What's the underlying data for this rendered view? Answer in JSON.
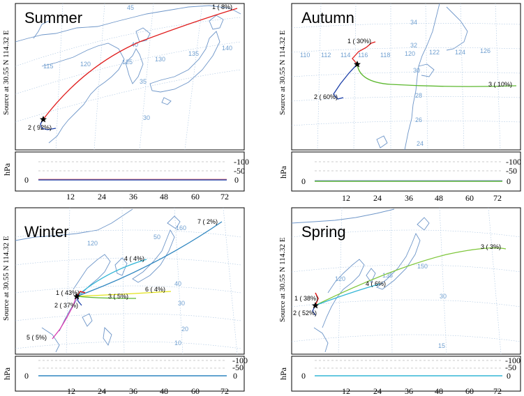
{
  "source_label": "Source  at 30.55 N 114.32 E",
  "height_unit": "hPa",
  "x_ticks": [
    "12",
    "24",
    "36",
    "48",
    "60",
    "72"
  ],
  "height_ticks": [
    "-100",
    "-50",
    "0"
  ],
  "height_zero": "0",
  "panels": [
    {
      "title": "Summer",
      "grid_numbers": [
        "45",
        "40",
        "35",
        "30",
        "115",
        "120",
        "125",
        "130",
        "135",
        "140"
      ],
      "trajectories": [
        {
          "label": "1 ( 8%)",
          "color": "#e01b1b"
        },
        {
          "label": "2 ( 92%)",
          "color": "#1c3fa8"
        }
      ]
    },
    {
      "title": "Autumn",
      "grid_numbers": [
        "34",
        "32",
        "30",
        "28",
        "26",
        "24",
        "110",
        "112",
        "114",
        "116",
        "118",
        "120",
        "122",
        "124",
        "126"
      ],
      "trajectories": [
        {
          "label": "1 ( 30%)",
          "color": "#e01b1b"
        },
        {
          "label": "2 ( 60%)",
          "color": "#1c3fa8"
        },
        {
          "label": "3 ( 10%)",
          "color": "#5cb82e"
        }
      ]
    },
    {
      "title": "Winter",
      "grid_numbers": [
        "160",
        "50",
        "40",
        "30",
        "20",
        "10",
        "120"
      ],
      "trajectories": [
        {
          "label": "1 ( 43%)",
          "color": "#e01b1b"
        },
        {
          "label": "2 ( 37%)",
          "color": "#1c3fa8"
        },
        {
          "label": "3 ( 5%)",
          "color": "#5cb82e"
        },
        {
          "label": "4 ( 4%)",
          "color": "#33b5d6"
        },
        {
          "label": "5 ( 5%)",
          "color": "#d63ab2"
        },
        {
          "label": "6 ( 4%)",
          "color": "#e3e31a"
        },
        {
          "label": "7 ( 2%)",
          "color": "#2f86c0"
        }
      ]
    },
    {
      "title": "Spring",
      "grid_numbers": [
        "150",
        "135",
        "120",
        "30",
        "15"
      ],
      "trajectories": [
        {
          "label": "1 ( 38%)",
          "color": "#e01b1b"
        },
        {
          "label": "2 ( 52%)",
          "color": "#1c3fa8"
        },
        {
          "label": "3 ( 3%)",
          "color": "#7ec63a"
        },
        {
          "label": "4 ( 6%)",
          "color": "#33b5d6"
        }
      ]
    }
  ]
}
